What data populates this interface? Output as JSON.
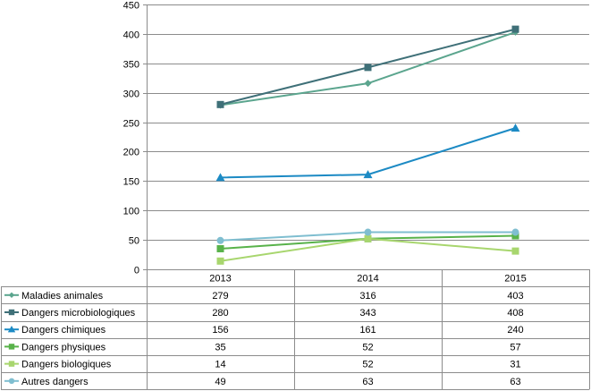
{
  "chart_data": {
    "type": "line",
    "categories": [
      "2013",
      "2014",
      "2015"
    ],
    "ylim": [
      0,
      450
    ],
    "yticks": [
      0,
      50,
      100,
      150,
      200,
      250,
      300,
      350,
      400,
      450
    ],
    "grid": true,
    "legend": "data-table-bottom",
    "series": [
      {
        "name": "Maladies animales",
        "values": [
          279,
          316,
          403
        ],
        "color": "#5BA58E",
        "marker": "diamond"
      },
      {
        "name": "Dangers microbiologiques",
        "values": [
          280,
          343,
          408
        ],
        "color": "#3F7078",
        "marker": "square"
      },
      {
        "name": "Dangers chimiques",
        "values": [
          156,
          161,
          240
        ],
        "color": "#1C8AC4",
        "marker": "triangle"
      },
      {
        "name": "Dangers physiques",
        "values": [
          35,
          52,
          57
        ],
        "color": "#58B24A",
        "marker": "square"
      },
      {
        "name": "Dangers biologiques",
        "values": [
          14,
          52,
          31
        ],
        "color": "#A8D66E",
        "marker": "square"
      },
      {
        "name": "Autres dangers",
        "values": [
          49,
          63,
          63
        ],
        "color": "#7FBED0",
        "marker": "circle"
      }
    ]
  }
}
